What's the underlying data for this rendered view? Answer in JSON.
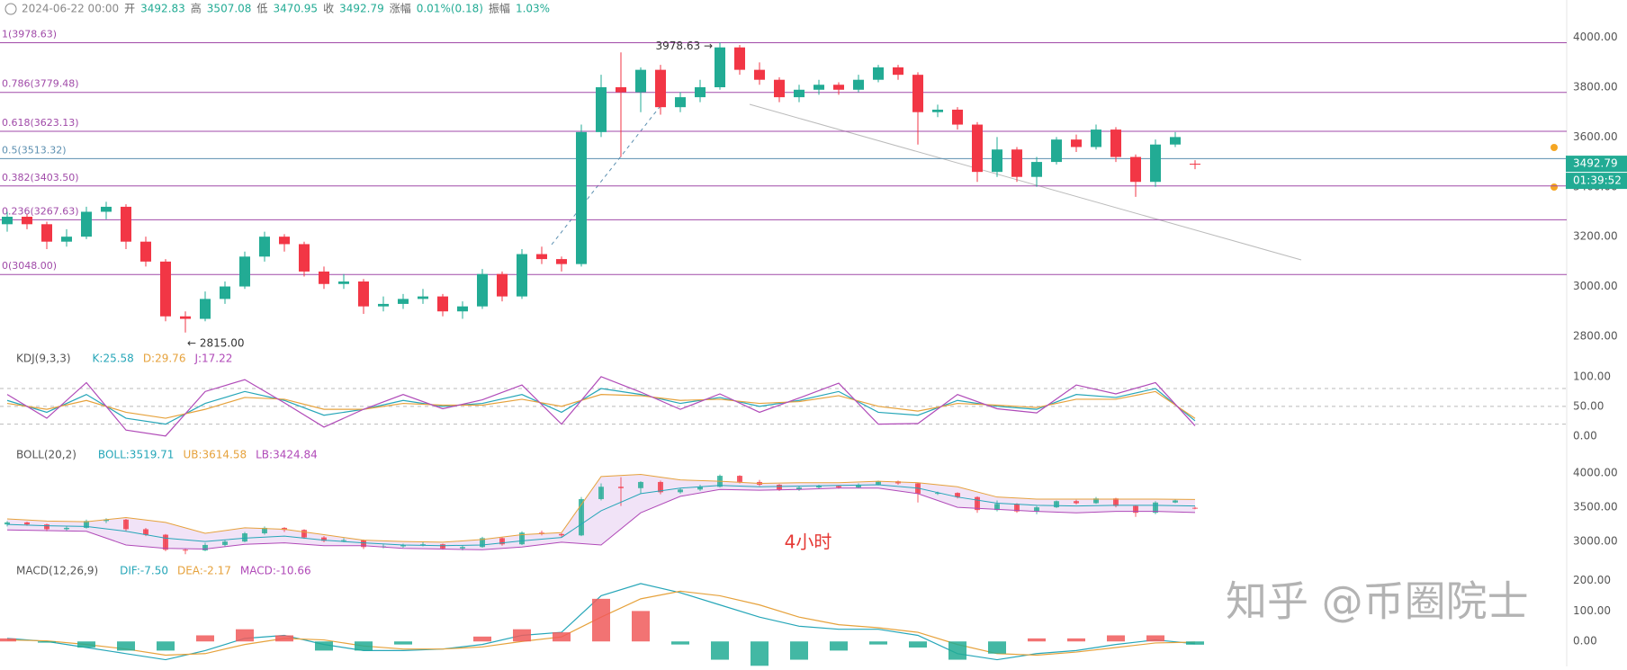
{
  "header": {
    "time": "2024-06-22 00:00",
    "fields": [
      {
        "label": "开",
        "value": "3492.83"
      },
      {
        "label": "高",
        "value": "3507.08"
      },
      {
        "label": "低",
        "value": "3470.95"
      },
      {
        "label": "收",
        "value": "3492.79"
      },
      {
        "label": "涨幅",
        "value": "0.01%(0.18)"
      },
      {
        "label": "振幅",
        "value": "1.03%"
      }
    ]
  },
  "chart_data": [
    {
      "type": "candlestick",
      "up_color": "#22ab94",
      "down_color": "#f23645",
      "ohlc": [
        [
          3250,
          3300,
          3220,
          3280
        ],
        [
          3280,
          3290,
          3230,
          3250
        ],
        [
          3250,
          3260,
          3150,
          3180
        ],
        [
          3180,
          3230,
          3160,
          3200
        ],
        [
          3200,
          3320,
          3190,
          3300
        ],
        [
          3300,
          3340,
          3270,
          3320
        ],
        [
          3320,
          3330,
          3150,
          3180
        ],
        [
          3180,
          3200,
          3080,
          3100
        ],
        [
          3100,
          3110,
          2860,
          2880
        ],
        [
          2880,
          2900,
          2815,
          2870
        ],
        [
          2870,
          2980,
          2860,
          2950
        ],
        [
          2950,
          3020,
          2930,
          3000
        ],
        [
          3000,
          3140,
          2990,
          3120
        ],
        [
          3120,
          3220,
          3100,
          3200
        ],
        [
          3200,
          3210,
          3140,
          3170
        ],
        [
          3170,
          3180,
          3040,
          3060
        ],
        [
          3060,
          3080,
          2990,
          3010
        ],
        [
          3010,
          3050,
          2990,
          3020
        ],
        [
          3020,
          3030,
          2890,
          2920
        ],
        [
          2920,
          2960,
          2900,
          2930
        ],
        [
          2930,
          2970,
          2910,
          2950
        ],
        [
          2950,
          2990,
          2930,
          2960
        ],
        [
          2960,
          2970,
          2880,
          2900
        ],
        [
          2900,
          2940,
          2870,
          2920
        ],
        [
          2920,
          3070,
          2910,
          3050
        ],
        [
          3050,
          3060,
          2940,
          2960
        ],
        [
          2960,
          3150,
          2950,
          3130
        ],
        [
          3130,
          3160,
          3090,
          3110
        ],
        [
          3110,
          3120,
          3060,
          3090
        ],
        [
          3090,
          3650,
          3080,
          3620
        ],
        [
          3620,
          3850,
          3600,
          3800
        ],
        [
          3800,
          3940,
          3520,
          3780
        ],
        [
          3780,
          3880,
          3700,
          3870
        ],
        [
          3870,
          3890,
          3690,
          3720
        ],
        [
          3720,
          3780,
          3700,
          3760
        ],
        [
          3760,
          3830,
          3740,
          3800
        ],
        [
          3800,
          3978.63,
          3790,
          3960
        ],
        [
          3960,
          3970,
          3850,
          3870
        ],
        [
          3870,
          3900,
          3810,
          3830
        ],
        [
          3830,
          3840,
          3740,
          3760
        ],
        [
          3760,
          3810,
          3740,
          3790
        ],
        [
          3790,
          3830,
          3770,
          3810
        ],
        [
          3810,
          3820,
          3770,
          3790
        ],
        [
          3790,
          3850,
          3780,
          3830
        ],
        [
          3830,
          3890,
          3820,
          3880
        ],
        [
          3880,
          3890,
          3830,
          3850
        ],
        [
          3850,
          3860,
          3570,
          3700
        ],
        [
          3700,
          3730,
          3680,
          3710
        ],
        [
          3710,
          3720,
          3630,
          3650
        ],
        [
          3650,
          3660,
          3420,
          3460
        ],
        [
          3460,
          3600,
          3440,
          3550
        ],
        [
          3550,
          3560,
          3420,
          3440
        ],
        [
          3440,
          3520,
          3400,
          3500
        ],
        [
          3500,
          3600,
          3490,
          3590
        ],
        [
          3590,
          3610,
          3540,
          3560
        ],
        [
          3560,
          3650,
          3550,
          3630
        ],
        [
          3630,
          3640,
          3500,
          3520
        ],
        [
          3520,
          3530,
          3360,
          3420
        ],
        [
          3420,
          3590,
          3400,
          3570
        ],
        [
          3570,
          3620,
          3560,
          3600
        ],
        [
          3492.83,
          3507.08,
          3470.95,
          3492.79
        ]
      ],
      "ylim": [
        2760,
        4042
      ],
      "yticks": [
        {
          "value": 4000,
          "label": "4000.00"
        },
        {
          "value": 3800,
          "label": "3800.00"
        },
        {
          "value": 3600,
          "label": "3600.00"
        },
        {
          "value": 3400,
          "label": "3400.00"
        },
        {
          "value": 3200,
          "label": "3200.00"
        },
        {
          "value": 3000,
          "label": "3000.00"
        },
        {
          "value": 2800,
          "label": "2800.00"
        }
      ],
      "fib_levels": [
        {
          "label": "1(3978.63)",
          "value": 3978.63,
          "color": "#a04aa8"
        },
        {
          "label": "0.786(3779.48)",
          "value": 3779.48,
          "color": "#a04aa8"
        },
        {
          "label": "0.618(3623.13)",
          "value": 3623.13,
          "color": "#a04aa8"
        },
        {
          "label": "0.5(3513.32)",
          "value": 3513.32,
          "color": "#5b8fb0"
        },
        {
          "label": "0.382(3403.50)",
          "value": 3403.5,
          "color": "#a04aa8"
        },
        {
          "label": "0.236(3267.63)",
          "value": 3267.63,
          "color": "#a04aa8"
        },
        {
          "label": "0(3048.00)",
          "value": 3048,
          "color": "#a04aa8"
        }
      ],
      "high_label": "3978.63 →",
      "low_label": "← 2815.00",
      "last_price": 3492.79,
      "countdown": "01:39:52"
    },
    {
      "type": "line",
      "title": "KDJ(9,3,3)",
      "ylim": [
        -23,
        121
      ],
      "yticks": [
        {
          "value": 100,
          "label": "100.00"
        },
        {
          "value": 50,
          "label": "50.00"
        },
        {
          "value": 0,
          "label": "0.00"
        }
      ],
      "hlines": [
        80,
        50,
        20
      ],
      "series": [
        {
          "name": "K:25.58",
          "color": "#26a6b8",
          "values": [
            60,
            40,
            70,
            30,
            20,
            55,
            75,
            60,
            35,
            45,
            60,
            50,
            55,
            70,
            40,
            80,
            70,
            55,
            65,
            50,
            60,
            75,
            40,
            35,
            60,
            50,
            45,
            70,
            65,
            80,
            25.58
          ]
        },
        {
          "name": "D:29.76",
          "color": "#e6a23c",
          "values": [
            55,
            45,
            60,
            40,
            30,
            45,
            65,
            62,
            45,
            45,
            55,
            52,
            52,
            62,
            50,
            70,
            68,
            60,
            62,
            55,
            58,
            68,
            50,
            42,
            55,
            52,
            48,
            62,
            62,
            75,
            29.76
          ]
        },
        {
          "name": "J:17.22",
          "color": "#b04ab8",
          "values": [
            70,
            30,
            90,
            10,
            0,
            75,
            95,
            56,
            15,
            45,
            70,
            46,
            61,
            86,
            20,
            100,
            74,
            45,
            71,
            40,
            64,
            89,
            20,
            21,
            70,
            46,
            39,
            86,
            71,
            90,
            17.22
          ]
        }
      ]
    },
    {
      "type": "band",
      "title": "BOLL(20,2)",
      "ylim": [
        2700,
        4145
      ],
      "fill": "#eedcf5",
      "yticks": [
        {
          "value": 4000,
          "label": "4000.00"
        },
        {
          "value": 3500,
          "label": "3500.00"
        },
        {
          "value": 3000,
          "label": "3000.00"
        }
      ],
      "series": [
        {
          "name": "BOLL:3519.71",
          "color": "#26a6b8",
          "values": [
            3250,
            3230,
            3220,
            3150,
            3050,
            3000,
            3050,
            3080,
            3020,
            2980,
            2950,
            2940,
            2950,
            3010,
            3060,
            3450,
            3700,
            3780,
            3820,
            3800,
            3810,
            3820,
            3830,
            3780,
            3650,
            3560,
            3530,
            3520,
            3530,
            3530,
            3519.71
          ]
        },
        {
          "name": "UB:3614.58",
          "color": "#e6a23c",
          "values": [
            3330,
            3300,
            3290,
            3350,
            3280,
            3120,
            3200,
            3180,
            3100,
            3020,
            3000,
            2990,
            3030,
            3100,
            3130,
            3950,
            3980,
            3900,
            3880,
            3850,
            3860,
            3860,
            3880,
            3860,
            3800,
            3650,
            3620,
            3620,
            3620,
            3620,
            3614.58
          ]
        },
        {
          "name": "LB:3424.84",
          "color": "#b04ab8",
          "values": [
            3170,
            3160,
            3150,
            2950,
            2900,
            2890,
            2960,
            2980,
            2940,
            2940,
            2900,
            2890,
            2880,
            2920,
            2990,
            2950,
            3420,
            3660,
            3760,
            3750,
            3760,
            3780,
            3780,
            3700,
            3500,
            3470,
            3440,
            3420,
            3440,
            3440,
            3424.84
          ]
        }
      ]
    },
    {
      "type": "macd",
      "title": "MACD(12,26,9)",
      "ylim": [
        -82,
        240
      ],
      "pos_color": "#f05a5a",
      "neg_color": "#22ab94",
      "yticks": [
        {
          "value": 200,
          "label": "200.00"
        },
        {
          "value": 100,
          "label": "100.00"
        },
        {
          "value": 0,
          "label": "0.00"
        }
      ],
      "series": [
        {
          "name": "DIF:-7.50",
          "color": "#26a6b8",
          "values": [
            10,
            0,
            -20,
            -40,
            -60,
            -30,
            10,
            20,
            -10,
            -30,
            -30,
            -25,
            -10,
            20,
            30,
            150,
            190,
            160,
            120,
            80,
            50,
            40,
            40,
            20,
            -40,
            -60,
            -40,
            -30,
            -10,
            5,
            -7.5
          ]
        },
        {
          "name": "DEA:-2.17",
          "color": "#e6a23c",
          "values": [
            5,
            2,
            -10,
            -25,
            -45,
            -40,
            -10,
            10,
            5,
            -15,
            -25,
            -25,
            -18,
            0,
            15,
            80,
            140,
            165,
            150,
            120,
            80,
            55,
            45,
            30,
            -10,
            -40,
            -45,
            -35,
            -20,
            -5,
            -2.17
          ]
        },
        {
          "name": "MACD:-10.66",
          "color": "#b04ab8",
          "style": "histogram",
          "values": [
            10,
            -4,
            -20,
            -30,
            -30,
            20,
            40,
            20,
            -30,
            -30,
            -10,
            0,
            16,
            40,
            30,
            140,
            100,
            -10,
            -60,
            -80,
            -60,
            -30,
            -10,
            -20,
            -60,
            -40,
            10,
            10,
            20,
            20,
            -10.66
          ]
        }
      ]
    }
  ],
  "annotation": "4小时",
  "watermark": "知乎 @币圈院士"
}
